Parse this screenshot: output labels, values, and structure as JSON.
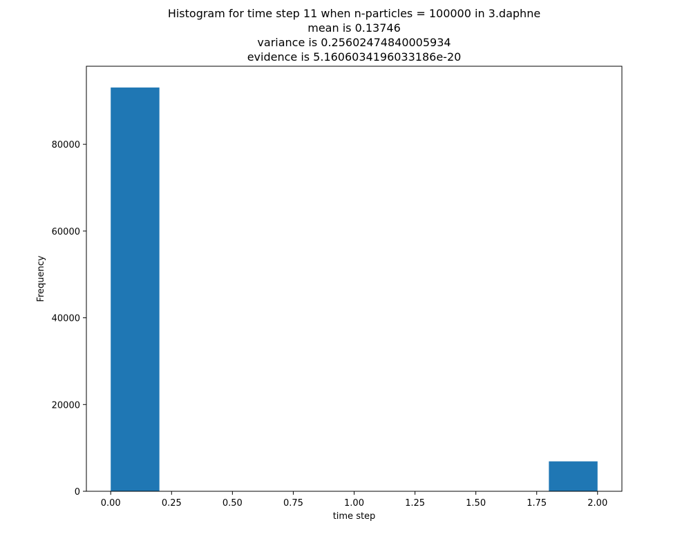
{
  "chart_data": {
    "type": "bar",
    "title_lines": [
      "Histogram for time step 11 when n-particles = 100000 in 3.daphne",
      "mean is 0.13746",
      "variance is 0.25602474840005934",
      "evidence is 5.1606034196033186e-20"
    ],
    "xlabel": "time step",
    "ylabel": "Frequency",
    "xlim": [
      -0.1,
      2.1
    ],
    "ylim": [
      0,
      98000
    ],
    "xticks": [
      0.0,
      0.25,
      0.5,
      0.75,
      1.0,
      1.25,
      1.5,
      1.75,
      2.0
    ],
    "xtick_labels": [
      "0.00",
      "0.25",
      "0.50",
      "0.75",
      "1.00",
      "1.25",
      "1.50",
      "1.75",
      "2.00"
    ],
    "yticks": [
      0,
      20000,
      40000,
      60000,
      80000
    ],
    "ytick_labels": [
      "0",
      "20000",
      "40000",
      "60000",
      "80000"
    ],
    "bin_edges": [
      0.0,
      0.2,
      0.4,
      0.6,
      0.8,
      1.0,
      1.2,
      1.4,
      1.6,
      1.8,
      2.0
    ],
    "values": [
      93100,
      0,
      0,
      0,
      0,
      0,
      0,
      0,
      0,
      6900
    ],
    "bar_color": "#1f77b4",
    "grid": false,
    "legend": "none"
  }
}
